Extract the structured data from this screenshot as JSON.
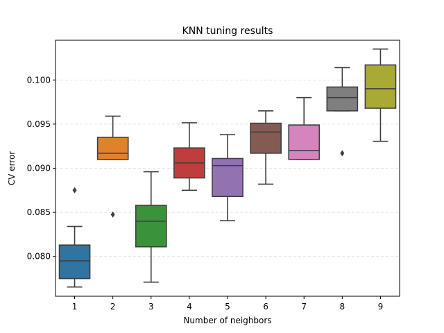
{
  "chart_data": {
    "type": "box",
    "title": "KNN tuning results",
    "xlabel": "Number of neighbors",
    "ylabel": "CV error",
    "ylim": [
      0.0755,
      0.1045
    ],
    "yticks": [
      "0.080",
      "0.085",
      "0.090",
      "0.095",
      "0.100"
    ],
    "grid": "horizontal dashed",
    "categories": [
      "1",
      "2",
      "3",
      "4",
      "5",
      "6",
      "7",
      "8",
      "9"
    ],
    "colors": [
      "#3274a1",
      "#e1812c",
      "#3a923a",
      "#c03d3e",
      "#9372b2",
      "#845b53",
      "#d684bd",
      "#7f7f7f",
      "#a9aa35"
    ],
    "boxes": [
      {
        "whisker_low": 0.07655,
        "q1": 0.0775,
        "median": 0.0795,
        "q3": 0.0813,
        "whisker_high": 0.0834,
        "outliers": [
          0.0875
        ]
      },
      {
        "whisker_low": 0.091,
        "q1": 0.091,
        "median": 0.0917,
        "q3": 0.0935,
        "whisker_high": 0.0959,
        "outliers": [
          0.08475
        ]
      },
      {
        "whisker_low": 0.0771,
        "q1": 0.0811,
        "median": 0.084,
        "q3": 0.0858,
        "whisker_high": 0.0896,
        "outliers": []
      },
      {
        "whisker_low": 0.0875,
        "q1": 0.0889,
        "median": 0.0906,
        "q3": 0.0923,
        "whisker_high": 0.09515,
        "outliers": []
      },
      {
        "whisker_low": 0.08405,
        "q1": 0.0868,
        "median": 0.0903,
        "q3": 0.0911,
        "whisker_high": 0.0938,
        "outliers": []
      },
      {
        "whisker_low": 0.0882,
        "q1": 0.0917,
        "median": 0.0941,
        "q3": 0.0951,
        "whisker_high": 0.0965,
        "outliers": []
      },
      {
        "whisker_low": 0.091,
        "q1": 0.091,
        "median": 0.092,
        "q3": 0.0949,
        "whisker_high": 0.098,
        "outliers": []
      },
      {
        "whisker_low": 0.0965,
        "q1": 0.0965,
        "median": 0.098,
        "q3": 0.0992,
        "whisker_high": 0.1014,
        "outliers": [
          0.0917
        ]
      },
      {
        "whisker_low": 0.09305,
        "q1": 0.0968,
        "median": 0.099,
        "q3": 0.1017,
        "whisker_high": 0.1035,
        "outliers": []
      }
    ]
  }
}
